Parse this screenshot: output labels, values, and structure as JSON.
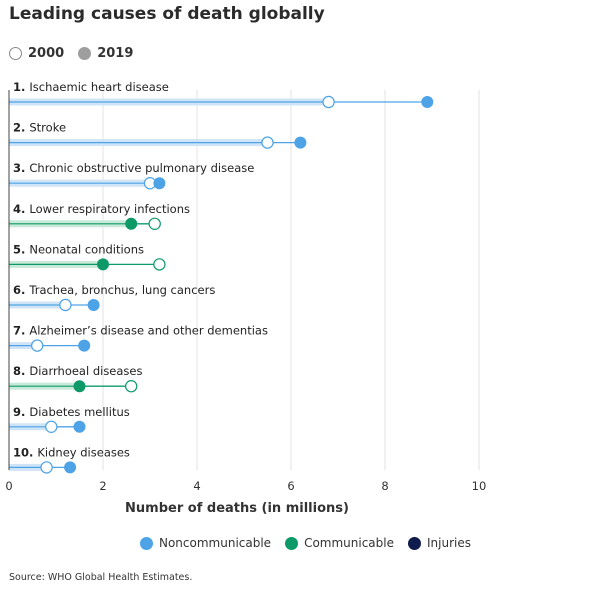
{
  "title": "Leading causes of death globally",
  "year_legend": {
    "open_label": "2000",
    "filled_label": "2019"
  },
  "category_legend": [
    {
      "label": "Noncommunicable",
      "color": "#4da3e6"
    },
    {
      "label": "Communicable",
      "color": "#0e9a68"
    },
    {
      "label": "Injuries",
      "color": "#0f1c4d"
    }
  ],
  "source": "Source: WHO Global Health Estimates.",
  "colors": {
    "noncommunicable": "#4da3e6",
    "noncommunicable_band": "#cfe4f7",
    "communicable": "#0e9a68",
    "communicable_band": "#c9ead9",
    "grid": "#e3e3e3",
    "axis": "#444444"
  },
  "chart_data": {
    "type": "dumbbell",
    "xlabel": "Number of deaths (in millions)",
    "xlim": [
      0,
      10
    ],
    "xticks": [
      0,
      2,
      4,
      6,
      8,
      10
    ],
    "xtick_labels": [
      "0",
      "2",
      "4",
      "6",
      "8",
      "10"
    ],
    "grid": true,
    "series": [
      {
        "name": "2000"
      },
      {
        "name": "2019"
      }
    ],
    "rows": [
      {
        "rank": "1.",
        "label": "Ischaemic heart disease",
        "category": "noncommunicable",
        "v2000": 6.8,
        "v2019": 8.9
      },
      {
        "rank": "2.",
        "label": "Stroke",
        "category": "noncommunicable",
        "v2000": 5.5,
        "v2019": 6.2
      },
      {
        "rank": "3.",
        "label": "Chronic obstructive pulmonary disease",
        "category": "noncommunicable",
        "v2000": 3.0,
        "v2019": 3.2
      },
      {
        "rank": "4.",
        "label": "Lower respiratory infections",
        "category": "communicable",
        "v2000": 3.1,
        "v2019": 2.6
      },
      {
        "rank": "5.",
        "label": "Neonatal conditions",
        "category": "communicable",
        "v2000": 3.2,
        "v2019": 2.0
      },
      {
        "rank": "6.",
        "label": "Trachea, bronchus, lung cancers",
        "category": "noncommunicable",
        "v2000": 1.2,
        "v2019": 1.8
      },
      {
        "rank": "7.",
        "label": "Alzheimer’s disease and other dementias",
        "category": "noncommunicable",
        "v2000": 0.6,
        "v2019": 1.6
      },
      {
        "rank": "8.",
        "label": "Diarrhoeal diseases",
        "category": "communicable",
        "v2000": 2.6,
        "v2019": 1.5
      },
      {
        "rank": "9.",
        "label": "Diabetes mellitus",
        "category": "noncommunicable",
        "v2000": 0.9,
        "v2019": 1.5
      },
      {
        "rank": "10.",
        "label": "Kidney diseases",
        "category": "noncommunicable",
        "v2000": 0.8,
        "v2019": 1.3
      }
    ]
  }
}
